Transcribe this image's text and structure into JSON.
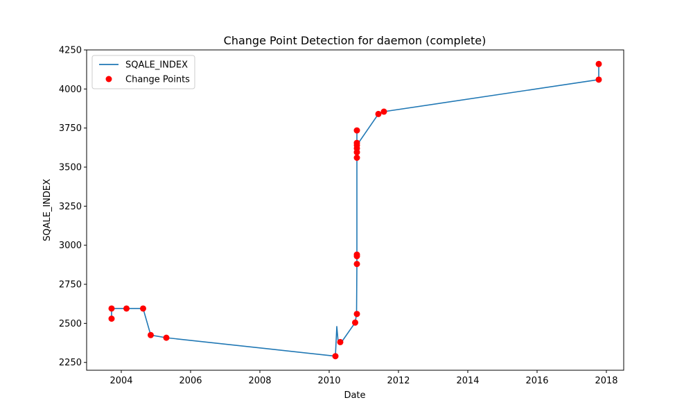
{
  "chart_data": {
    "type": "line",
    "title": "Change Point Detection for daemon (complete)",
    "xlabel": "Date",
    "ylabel": "SQALE_INDEX",
    "xlim": [
      2003.0,
      2018.5
    ],
    "ylim": [
      2200,
      4250
    ],
    "xticks": [
      2004,
      2006,
      2008,
      2010,
      2012,
      2014,
      2016,
      2018
    ],
    "xtick_labels": [
      "2004",
      "2006",
      "2008",
      "2010",
      "2012",
      "2014",
      "2016",
      "2018"
    ],
    "yticks": [
      2250,
      2500,
      2750,
      3000,
      3250,
      3500,
      3750,
      4000,
      4250
    ],
    "ytick_labels": [
      "2250",
      "2500",
      "2750",
      "3000",
      "3250",
      "3500",
      "3750",
      "4000",
      "4250"
    ],
    "legend": {
      "placement": "top-left",
      "entries": [
        {
          "label": "SQALE_INDEX",
          "kind": "line",
          "color": "#1f77b4"
        },
        {
          "label": "Change Points",
          "kind": "marker",
          "color": "#ff0000"
        }
      ]
    },
    "series": [
      {
        "name": "SQALE_INDEX",
        "color": "#1f77b4",
        "x": [
          2003.72,
          2003.72,
          2004.15,
          2004.63,
          2004.85,
          2005.3,
          2010.18,
          2010.22,
          2010.26,
          2010.35,
          2010.75,
          2010.79,
          2010.8,
          2010.8,
          2010.8,
          2010.8,
          2010.8,
          2010.8,
          2010.8,
          2010.8,
          2010.8,
          2010.8,
          2010.8,
          2011.42,
          2011.58,
          2017.78,
          2017.78
        ],
        "y": [
          2530,
          2595,
          2595,
          2595,
          2425,
          2408,
          2290,
          2480,
          2380,
          2378,
          2505,
          2560,
          2880,
          2930,
          2940,
          3560,
          3595,
          3620,
          3640,
          3655,
          3735,
          3655,
          3640,
          3840,
          3855,
          4060,
          4160
        ]
      },
      {
        "name": "Change Points",
        "color": "#ff0000",
        "kind": "scatter",
        "x": [
          2003.72,
          2003.72,
          2004.15,
          2004.63,
          2004.85,
          2005.3,
          2010.18,
          2010.32,
          2010.75,
          2010.8,
          2010.8,
          2010.8,
          2010.8,
          2010.8,
          2010.8,
          2010.8,
          2010.8,
          2010.8,
          2010.8,
          2011.42,
          2011.58,
          2017.78,
          2017.78
        ],
        "y": [
          2530,
          2595,
          2595,
          2595,
          2425,
          2408,
          2290,
          2380,
          2505,
          2560,
          2880,
          2930,
          2940,
          3560,
          3595,
          3620,
          3640,
          3655,
          3735,
          3840,
          3855,
          4060,
          4160
        ]
      }
    ]
  }
}
